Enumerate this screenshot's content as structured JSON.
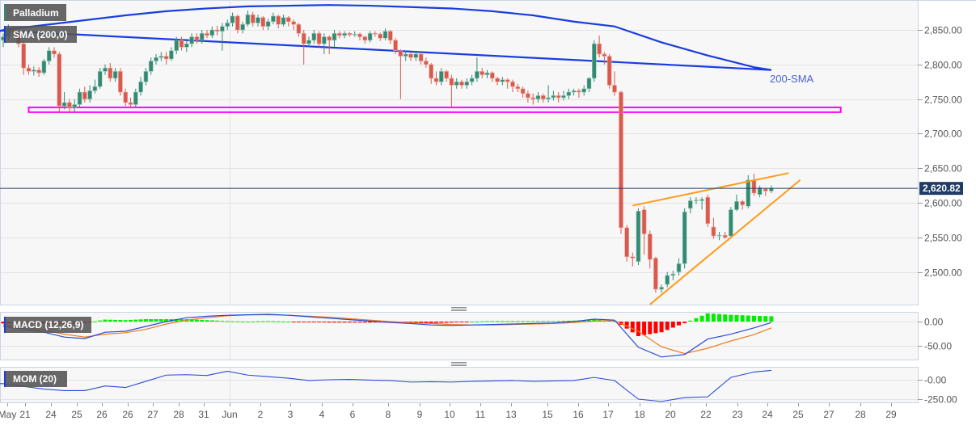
{
  "header": {
    "symbol": "Palladium",
    "sma_label": "SMA (200,0)",
    "sma_annotation": "200-SMA",
    "last_price": "2,620.82"
  },
  "macd_label": "MACD (12,26,9)",
  "mom_label": "MOM (20)",
  "colors": {
    "up": "#338a73",
    "down": "#d9594c",
    "sma": "#1a3de0",
    "sma_annotation": "#4a5fd8",
    "support_zone": "#ff00ff",
    "trendline": "#ff9a1a",
    "last_price_line": "#1f3b66",
    "macd_line": "#2a4bd8",
    "signal_line": "#f07a20",
    "hist_up": "#00ee00",
    "hist_down": "#ff0000",
    "mom_line": "#2a4bd8"
  },
  "chart_data": [
    {
      "type": "candlestick",
      "title": "Palladium",
      "y_ticks": [
        "2,850.00",
        "2,800.00",
        "2,750.00",
        "2,700.00",
        "2,650.00",
        "2,600.00",
        "2,550.00",
        "2,500.00"
      ],
      "y_tick_values": [
        2850,
        2800,
        2750,
        2700,
        2650,
        2600,
        2550,
        2500
      ],
      "x_ticks": [
        "May",
        "21",
        "24",
        "25",
        "26",
        "26",
        "27",
        "28",
        "31",
        "Jun",
        "2",
        "3",
        "4",
        "6",
        "8",
        "9",
        "10",
        "11",
        "13",
        "15",
        "16",
        "17",
        "18",
        "20",
        "22",
        "23",
        "24",
        "25",
        "27",
        "28",
        "29"
      ],
      "ylim": [
        2455,
        2892
      ],
      "last_price": 2620.82,
      "ohlc": [
        [
          2835,
          2845,
          2825,
          2840
        ],
        [
          2840,
          2858,
          2835,
          2850
        ],
        [
          2850,
          2855,
          2840,
          2845
        ],
        [
          2845,
          2850,
          2825,
          2830
        ],
        [
          2830,
          2835,
          2785,
          2795
        ],
        [
          2795,
          2800,
          2785,
          2790
        ],
        [
          2790,
          2797,
          2784,
          2792
        ],
        [
          2792,
          2796,
          2782,
          2788
        ],
        [
          2788,
          2808,
          2785,
          2805
        ],
        [
          2805,
          2825,
          2800,
          2820
        ],
        [
          2820,
          2825,
          2810,
          2815
        ],
        [
          2815,
          2818,
          2730,
          2740
        ],
        [
          2740,
          2760,
          2735,
          2745
        ],
        [
          2745,
          2750,
          2730,
          2738
        ],
        [
          2738,
          2750,
          2732,
          2742
        ],
        [
          2742,
          2765,
          2738,
          2760
        ],
        [
          2760,
          2768,
          2745,
          2750
        ],
        [
          2750,
          2770,
          2745,
          2762
        ],
        [
          2762,
          2778,
          2758,
          2768
        ],
        [
          2768,
          2795,
          2765,
          2790
        ],
        [
          2790,
          2800,
          2785,
          2795
        ],
        [
          2795,
          2802,
          2775,
          2780
        ],
        [
          2780,
          2795,
          2775,
          2790
        ],
        [
          2790,
          2795,
          2755,
          2760
        ],
        [
          2760,
          2765,
          2740,
          2745
        ],
        [
          2745,
          2752,
          2738,
          2742
        ],
        [
          2742,
          2765,
          2738,
          2760
        ],
        [
          2760,
          2782,
          2755,
          2775
        ],
        [
          2775,
          2795,
          2770,
          2790
        ],
        [
          2790,
          2810,
          2785,
          2805
        ],
        [
          2805,
          2815,
          2800,
          2810
        ],
        [
          2810,
          2818,
          2805,
          2812
        ],
        [
          2812,
          2818,
          2800,
          2808
        ],
        [
          2808,
          2825,
          2805,
          2820
        ],
        [
          2820,
          2840,
          2815,
          2835
        ],
        [
          2835,
          2840,
          2820,
          2825
        ],
        [
          2825,
          2835,
          2818,
          2830
        ],
        [
          2830,
          2845,
          2825,
          2840
        ],
        [
          2840,
          2845,
          2830,
          2835
        ],
        [
          2835,
          2850,
          2830,
          2845
        ],
        [
          2845,
          2850,
          2838,
          2842
        ],
        [
          2842,
          2855,
          2838,
          2850
        ],
        [
          2850,
          2856,
          2842,
          2848
        ],
        [
          2848,
          2860,
          2820,
          2855
        ],
        [
          2855,
          2865,
          2850,
          2860
        ],
        [
          2860,
          2875,
          2855,
          2870
        ],
        [
          2870,
          2872,
          2845,
          2850
        ],
        [
          2850,
          2862,
          2845,
          2858
        ],
        [
          2858,
          2878,
          2855,
          2872
        ],
        [
          2872,
          2876,
          2855,
          2860
        ],
        [
          2860,
          2872,
          2855,
          2868
        ],
        [
          2868,
          2870,
          2850,
          2855
        ],
        [
          2855,
          2866,
          2850,
          2862
        ],
        [
          2862,
          2875,
          2858,
          2870
        ],
        [
          2870,
          2872,
          2852,
          2858
        ],
        [
          2858,
          2872,
          2855,
          2868
        ],
        [
          2868,
          2870,
          2855,
          2862
        ],
        [
          2862,
          2865,
          2850,
          2858
        ],
        [
          2858,
          2860,
          2840,
          2845
        ],
        [
          2845,
          2850,
          2800,
          2830
        ],
        [
          2830,
          2840,
          2825,
          2835
        ],
        [
          2835,
          2850,
          2830,
          2845
        ],
        [
          2845,
          2848,
          2825,
          2830
        ],
        [
          2830,
          2845,
          2815,
          2840
        ],
        [
          2840,
          2842,
          2815,
          2835
        ],
        [
          2835,
          2850,
          2825,
          2845
        ],
        [
          2845,
          2848,
          2838,
          2842
        ],
        [
          2842,
          2848,
          2838,
          2845
        ],
        [
          2845,
          2847,
          2840,
          2843
        ],
        [
          2843,
          2848,
          2840,
          2844
        ],
        [
          2844,
          2846,
          2835,
          2840
        ],
        [
          2840,
          2842,
          2830,
          2835
        ],
        [
          2835,
          2848,
          2832,
          2845
        ],
        [
          2845,
          2848,
          2840,
          2844
        ],
        [
          2844,
          2846,
          2834,
          2838
        ],
        [
          2838,
          2852,
          2835,
          2848
        ],
        [
          2848,
          2850,
          2830,
          2835
        ],
        [
          2835,
          2838,
          2815,
          2820
        ],
        [
          2820,
          2822,
          2750,
          2812
        ],
        [
          2812,
          2820,
          2805,
          2815
        ],
        [
          2815,
          2818,
          2805,
          2810
        ],
        [
          2810,
          2820,
          2805,
          2815
        ],
        [
          2815,
          2818,
          2800,
          2805
        ],
        [
          2805,
          2810,
          2795,
          2800
        ],
        [
          2800,
          2802,
          2772,
          2780
        ],
        [
          2780,
          2790,
          2770,
          2775
        ],
        [
          2775,
          2795,
          2770,
          2790
        ],
        [
          2790,
          2792,
          2775,
          2780
        ],
        [
          2780,
          2785,
          2738,
          2770
        ],
        [
          2770,
          2780,
          2765,
          2775
        ],
        [
          2775,
          2778,
          2765,
          2770
        ],
        [
          2770,
          2780,
          2765,
          2775
        ],
        [
          2775,
          2785,
          2770,
          2780
        ],
        [
          2780,
          2810,
          2775,
          2790
        ],
        [
          2790,
          2795,
          2780,
          2785
        ],
        [
          2785,
          2792,
          2780,
          2788
        ],
        [
          2788,
          2790,
          2775,
          2780
        ],
        [
          2780,
          2782,
          2770,
          2775
        ],
        [
          2775,
          2782,
          2770,
          2778
        ],
        [
          2778,
          2780,
          2765,
          2775
        ],
        [
          2775,
          2778,
          2760,
          2768
        ],
        [
          2768,
          2772,
          2760,
          2765
        ],
        [
          2765,
          2768,
          2752,
          2758
        ],
        [
          2758,
          2762,
          2745,
          2752
        ],
        [
          2752,
          2758,
          2742,
          2750
        ],
        [
          2750,
          2760,
          2745,
          2755
        ],
        [
          2755,
          2758,
          2745,
          2750
        ],
        [
          2750,
          2770,
          2745,
          2752
        ],
        [
          2752,
          2762,
          2748,
          2755
        ],
        [
          2755,
          2760,
          2745,
          2752
        ],
        [
          2752,
          2762,
          2748,
          2755
        ],
        [
          2755,
          2765,
          2750,
          2760
        ],
        [
          2760,
          2765,
          2755,
          2762
        ],
        [
          2762,
          2765,
          2752,
          2760
        ],
        [
          2760,
          2770,
          2755,
          2765
        ],
        [
          2765,
          2782,
          2760,
          2780
        ],
        [
          2780,
          2835,
          2775,
          2830
        ],
        [
          2830,
          2842,
          2810,
          2815
        ],
        [
          2815,
          2818,
          2800,
          2812
        ],
        [
          2812,
          2815,
          2765,
          2770
        ],
        [
          2770,
          2790,
          2755,
          2760
        ],
        [
          2760,
          2762,
          2555,
          2564
        ],
        [
          2564,
          2568,
          2515,
          2522
        ],
        [
          2522,
          2528,
          2508,
          2520
        ],
        [
          2515,
          2592,
          2510,
          2588
        ],
        [
          2590,
          2595,
          2525,
          2555
        ],
        [
          2555,
          2560,
          2505,
          2518
        ],
        [
          2520,
          2522,
          2470,
          2475
        ],
        [
          2475,
          2482,
          2470,
          2478
        ],
        [
          2482,
          2500,
          2478,
          2495
        ],
        [
          2495,
          2502,
          2488,
          2497
        ],
        [
          2500,
          2520,
          2495,
          2512
        ],
        [
          2512,
          2592,
          2505,
          2587
        ],
        [
          2592,
          2608,
          2585,
          2603
        ],
        [
          2603,
          2608,
          2598,
          2604
        ],
        [
          2603,
          2608,
          2590,
          2605
        ],
        [
          2608,
          2612,
          2565,
          2570
        ],
        [
          2565,
          2578,
          2548,
          2552
        ],
        [
          2552,
          2558,
          2546,
          2553
        ],
        [
          2553,
          2558,
          2548,
          2550
        ],
        [
          2552,
          2594,
          2548,
          2590
        ],
        [
          2590,
          2612,
          2588,
          2602
        ],
        [
          2602,
          2604,
          2590,
          2597
        ],
        [
          2595,
          2640,
          2592,
          2633
        ],
        [
          2633,
          2642,
          2610,
          2614
        ],
        [
          2612,
          2625,
          2608,
          2622
        ],
        [
          2620,
          2622,
          2610,
          2617
        ],
        [
          2617,
          2625,
          2614,
          2621
        ]
      ],
      "sma200": [
        2850,
        2857,
        2864,
        2871,
        2877,
        2881,
        2884,
        2885,
        2886,
        2885,
        2883,
        2881,
        2877,
        2871,
        2862,
        2855,
        2832,
        2813,
        2796,
        2792
      ],
      "support_zone": {
        "low": 2731,
        "high": 2738,
        "from_bar": 5,
        "to_bar": 159
      },
      "trendlines": [
        {
          "name": "upper",
          "from": {
            "bar": 123,
            "price": 2596
          },
          "to": {
            "bar": 150,
            "price": 2643
          }
        },
        {
          "name": "lower",
          "from": {
            "bar": 126,
            "price": 2453
          },
          "to": {
            "bar": 152,
            "price": 2633
          }
        }
      ]
    },
    {
      "type": "line",
      "title": "MACD (12,26,9)",
      "y_ticks": [
        "0.00",
        "-50.00"
      ],
      "y_tick_values": [
        0,
        -50
      ],
      "macd": [
        -10,
        -15,
        -22,
        -32,
        -35,
        -22,
        -20,
        -10,
        0,
        8,
        11,
        13,
        14,
        15,
        13,
        10,
        7,
        4,
        1,
        -2,
        -4,
        -7,
        -8,
        -7,
        -6,
        -5,
        -4,
        -3,
        0,
        5,
        3,
        -53,
        -73,
        -68,
        -36,
        -26,
        -13,
        -2
      ],
      "signal": [
        -6,
        -11,
        -18,
        -26,
        -32,
        -26,
        -23,
        -16,
        -5,
        3,
        8,
        12,
        14,
        14,
        13,
        11,
        9,
        6,
        3,
        0,
        -2,
        -4,
        -6,
        -7,
        -7,
        -6,
        -5,
        -4,
        -2,
        1,
        2,
        -20,
        -52,
        -66,
        -55,
        -40,
        -27,
        -13
      ],
      "histogram": [
        -4,
        -4,
        -4,
        -6,
        -3,
        4,
        3,
        5,
        5,
        5,
        3,
        1,
        0,
        1,
        0,
        -1,
        -2,
        -2,
        -2,
        -2,
        -2,
        -3,
        -2,
        0,
        1,
        1,
        1,
        1,
        2,
        4,
        1,
        -30,
        -22,
        -3,
        17,
        14,
        12,
        11
      ]
    },
    {
      "type": "line",
      "title": "MOM (20)",
      "y_ticks": [
        "-0.00",
        "-250.00"
      ],
      "y_tick_values": [
        0,
        -250
      ],
      "values": [
        -50,
        -85,
        -120,
        -140,
        -140,
        -80,
        -100,
        -20,
        60,
        65,
        55,
        110,
        60,
        40,
        20,
        -10,
        0,
        5,
        -5,
        -10,
        -30,
        -25,
        -30,
        -20,
        -15,
        -10,
        -20,
        -15,
        -10,
        30,
        -10,
        -250,
        -280,
        -230,
        -220,
        30,
        100,
        120
      ]
    }
  ]
}
